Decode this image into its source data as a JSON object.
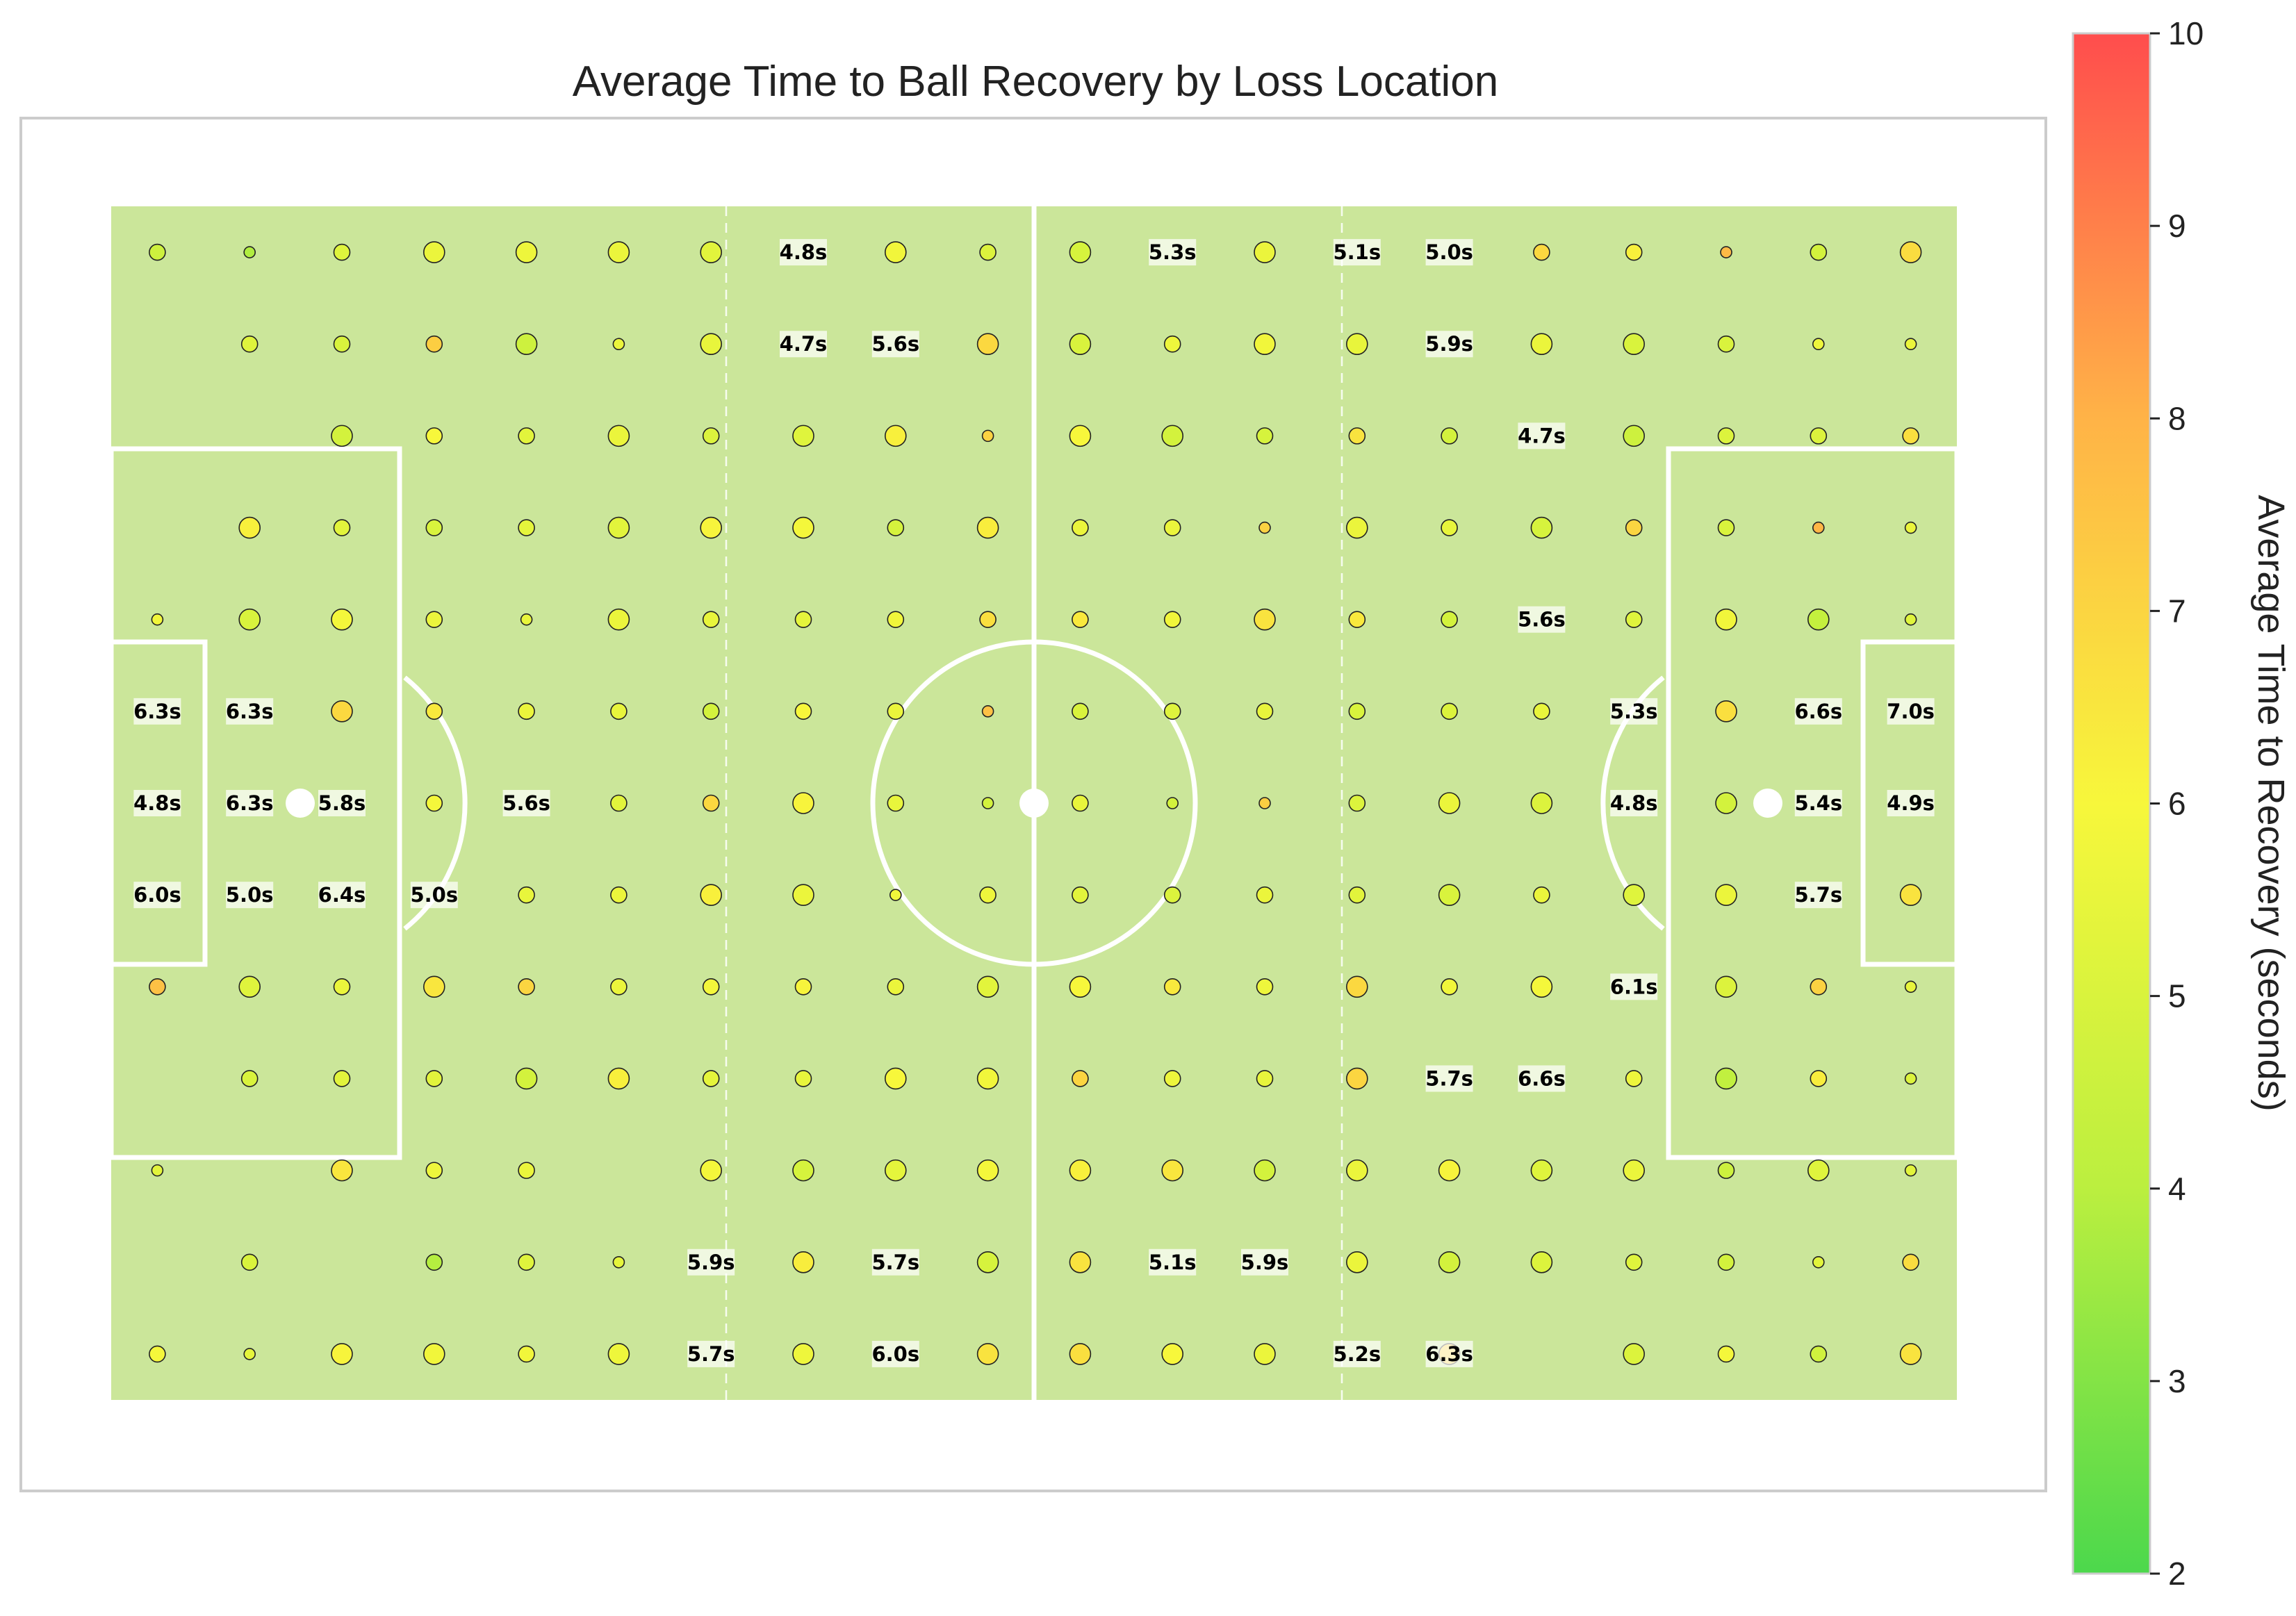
{
  "colors": {
    "pitch": "#cbe69a",
    "lines": "#ffffff",
    "frame": "#cccccc",
    "marker_edge": "#222222",
    "label_bg": "#ffffff",
    "cmap": [
      "#4cd84c",
      "#bbef3f",
      "#f7f73b",
      "#ffb347",
      "#ff4d4d"
    ]
  },
  "chart_data": {
    "type": "scatter",
    "title": "Average Time to Ball Recovery by Loss Location",
    "xlabel": "",
    "ylabel": "",
    "grid": false,
    "xlim": [
      0,
      120
    ],
    "ylim": [
      0,
      78
    ],
    "colorbar": {
      "label": "Average Time to Recovery (seconds)",
      "min": 2,
      "max": 10,
      "ticks": [
        2,
        3,
        4,
        5,
        6,
        7,
        8,
        9,
        10
      ]
    },
    "grid_columns_x": [
      3,
      9,
      15,
      21,
      27,
      33,
      39,
      45,
      51,
      57,
      63,
      69,
      75,
      81,
      87,
      93,
      99,
      105,
      111,
      117
    ],
    "grid_rows_y": [
      75,
      69,
      63,
      57,
      51,
      45,
      39,
      33,
      27,
      21,
      15,
      9,
      3
    ],
    "cells": [
      [
        4.6,
        3.8,
        5.2,
        5.6,
        5.7,
        5.6,
        5.3,
        null,
        5.8,
        5.1,
        4.9,
        null,
        5.6,
        null,
        null,
        6.9,
        6.2,
        7.8,
        4.8,
        6.8
      ],
      [
        null,
        5.2,
        5.0,
        7.2,
        4.6,
        5.6,
        5.5,
        null,
        null,
        6.9,
        5.0,
        5.7,
        5.8,
        5.5,
        null,
        5.6,
        5.0,
        5.0,
        5.7,
        5.6
      ],
      [
        null,
        null,
        4.8,
        6.0,
        5.3,
        5.6,
        5.1,
        5.2,
        6.2,
        7.1,
        6.0,
        4.8,
        4.9,
        6.6,
        4.8,
        null,
        4.6,
        5.1,
        5.1,
        6.7
      ],
      [
        null,
        6.2,
        5.3,
        5.0,
        5.4,
        5.3,
        6.1,
        5.9,
        4.9,
        6.3,
        5.6,
        5.6,
        7.1,
        5.6,
        5.5,
        4.9,
        7.0,
        5.0,
        7.9,
        5.6
      ],
      [
        5.8,
        5.0,
        5.9,
        5.6,
        5.5,
        5.6,
        5.5,
        5.4,
        5.8,
        6.7,
        6.4,
        5.8,
        6.6,
        6.4,
        4.8,
        null,
        5.2,
        5.8,
        4.3,
        5.2
      ],
      [
        null,
        null,
        6.9,
        6.4,
        5.6,
        5.5,
        4.8,
        6.0,
        5.6,
        7.6,
        5.0,
        5.2,
        5.5,
        5.0,
        5.1,
        5.5,
        null,
        6.7,
        null,
        null
      ],
      [
        null,
        null,
        null,
        5.9,
        null,
        5.3,
        6.9,
        6.1,
        5.5,
        4.8,
        5.5,
        4.8,
        7.2,
        5.1,
        5.6,
        5.1,
        null,
        4.8,
        null,
        null
      ],
      [
        null,
        null,
        null,
        null,
        5.5,
        5.6,
        6.2,
        5.6,
        5.8,
        5.7,
        5.3,
        5.1,
        5.6,
        5.3,
        5.0,
        5.6,
        5.2,
        5.6,
        null,
        6.6
      ],
      [
        7.6,
        5.2,
        5.6,
        6.5,
        7.0,
        5.6,
        5.9,
        6.1,
        5.6,
        5.3,
        6.0,
        6.4,
        5.7,
        6.9,
        5.8,
        5.9,
        null,
        5.1,
        7.1,
        5.5
      ],
      [
        null,
        5.0,
        5.3,
        5.3,
        4.8,
        6.2,
        5.4,
        5.5,
        6.0,
        5.8,
        7.0,
        5.7,
        5.5,
        7.0,
        null,
        null,
        5.7,
        4.2,
        6.3,
        5.1
      ],
      [
        5.3,
        null,
        6.5,
        5.7,
        5.6,
        null,
        5.9,
        4.9,
        5.4,
        5.9,
        6.2,
        6.5,
        4.8,
        5.6,
        6.1,
        5.2,
        5.6,
        4.6,
        5.2,
        5.3
      ],
      [
        null,
        5.0,
        null,
        3.9,
        5.2,
        5.4,
        null,
        6.3,
        null,
        4.9,
        6.6,
        null,
        null,
        5.6,
        4.8,
        5.1,
        5.2,
        4.8,
        5.3,
        6.8
      ],
      [
        5.9,
        5.4,
        6.1,
        5.8,
        5.8,
        5.7,
        null,
        5.7,
        null,
        6.6,
        6.7,
        6.0,
        5.6,
        null,
        6.9,
        null,
        5.1,
        5.9,
        4.7,
        6.6
      ]
    ],
    "sizes": [
      [
        2,
        1,
        2,
        3,
        3,
        3,
        3,
        0,
        3,
        2,
        3,
        0,
        3,
        0,
        0,
        2,
        2,
        1,
        2,
        3
      ],
      [
        0,
        2,
        2,
        2,
        3,
        1,
        3,
        0,
        0,
        3,
        3,
        2,
        3,
        3,
        0,
        3,
        3,
        2,
        1,
        1
      ],
      [
        0,
        0,
        3,
        2,
        2,
        3,
        2,
        3,
        3,
        1,
        3,
        3,
        2,
        2,
        2,
        0,
        3,
        2,
        2,
        2
      ],
      [
        0,
        3,
        2,
        2,
        2,
        3,
        3,
        3,
        2,
        3,
        2,
        2,
        1,
        3,
        2,
        3,
        2,
        2,
        1,
        1
      ],
      [
        1,
        3,
        3,
        2,
        1,
        3,
        2,
        2,
        2,
        2,
        2,
        2,
        3,
        2,
        2,
        0,
        2,
        3,
        3,
        1
      ],
      [
        0,
        0,
        3,
        2,
        2,
        2,
        2,
        2,
        2,
        1,
        2,
        2,
        2,
        2,
        2,
        2,
        0,
        3,
        0,
        0
      ],
      [
        0,
        0,
        0,
        2,
        0,
        2,
        2,
        3,
        2,
        1,
        2,
        1,
        1,
        2,
        3,
        3,
        0,
        3,
        0,
        0
      ],
      [
        0,
        0,
        0,
        0,
        2,
        2,
        3,
        3,
        1,
        2,
        2,
        2,
        2,
        2,
        3,
        2,
        3,
        3,
        0,
        3
      ],
      [
        2,
        3,
        2,
        3,
        2,
        2,
        2,
        2,
        2,
        3,
        3,
        2,
        2,
        3,
        2,
        3,
        0,
        3,
        2,
        1
      ],
      [
        0,
        2,
        2,
        2,
        3,
        3,
        2,
        2,
        3,
        3,
        2,
        2,
        2,
        3,
        0,
        0,
        2,
        3,
        2,
        1
      ],
      [
        1,
        0,
        3,
        2,
        2,
        0,
        3,
        3,
        3,
        3,
        3,
        3,
        3,
        3,
        3,
        3,
        3,
        2,
        3,
        1
      ],
      [
        0,
        2,
        0,
        2,
        2,
        1,
        0,
        3,
        0,
        3,
        3,
        0,
        0,
        3,
        3,
        3,
        2,
        2,
        1,
        2
      ],
      [
        2,
        1,
        3,
        3,
        2,
        3,
        0,
        3,
        0,
        3,
        3,
        3,
        3,
        0,
        3,
        0,
        3,
        2,
        2,
        3
      ]
    ],
    "annotations": [
      {
        "x": 45,
        "y": 75,
        "text": "4.8s"
      },
      {
        "x": 69,
        "y": 75,
        "text": "5.3s"
      },
      {
        "x": 81,
        "y": 75,
        "text": "5.1s"
      },
      {
        "x": 87,
        "y": 75,
        "text": "5.0s"
      },
      {
        "x": 45,
        "y": 69,
        "text": "4.7s"
      },
      {
        "x": 51,
        "y": 69,
        "text": "5.6s"
      },
      {
        "x": 87,
        "y": 69,
        "text": "5.9s"
      },
      {
        "x": 93,
        "y": 63,
        "text": "4.7s"
      },
      {
        "x": 93,
        "y": 51,
        "text": "5.6s"
      },
      {
        "x": 3,
        "y": 45,
        "text": "6.3s"
      },
      {
        "x": 9,
        "y": 45,
        "text": "6.3s"
      },
      {
        "x": 99,
        "y": 45,
        "text": "5.3s"
      },
      {
        "x": 111,
        "y": 45,
        "text": "6.6s"
      },
      {
        "x": 117,
        "y": 45,
        "text": "7.0s"
      },
      {
        "x": 3,
        "y": 39,
        "text": "4.8s"
      },
      {
        "x": 9,
        "y": 39,
        "text": "6.3s"
      },
      {
        "x": 15,
        "y": 39,
        "text": "5.8s"
      },
      {
        "x": 27,
        "y": 39,
        "text": "5.6s"
      },
      {
        "x": 99,
        "y": 39,
        "text": "4.8s"
      },
      {
        "x": 111,
        "y": 39,
        "text": "5.4s"
      },
      {
        "x": 117,
        "y": 39,
        "text": "4.9s"
      },
      {
        "x": 3,
        "y": 33,
        "text": "6.0s"
      },
      {
        "x": 9,
        "y": 33,
        "text": "5.0s"
      },
      {
        "x": 15,
        "y": 33,
        "text": "6.4s"
      },
      {
        "x": 21,
        "y": 33,
        "text": "5.0s"
      },
      {
        "x": 111,
        "y": 33,
        "text": "5.7s"
      },
      {
        "x": 99,
        "y": 27,
        "text": "6.1s"
      },
      {
        "x": 87,
        "y": 21,
        "text": "5.7s"
      },
      {
        "x": 93,
        "y": 21,
        "text": "6.6s"
      },
      {
        "x": 39,
        "y": 9,
        "text": "5.9s"
      },
      {
        "x": 51,
        "y": 9,
        "text": "5.7s"
      },
      {
        "x": 69,
        "y": 9,
        "text": "5.1s"
      },
      {
        "x": 75,
        "y": 9,
        "text": "5.9s"
      },
      {
        "x": 39,
        "y": 3,
        "text": "5.7s"
      },
      {
        "x": 51,
        "y": 3,
        "text": "6.0s"
      },
      {
        "x": 81,
        "y": 3,
        "text": "5.2s"
      },
      {
        "x": 87,
        "y": 3,
        "text": "6.3s"
      }
    ]
  }
}
